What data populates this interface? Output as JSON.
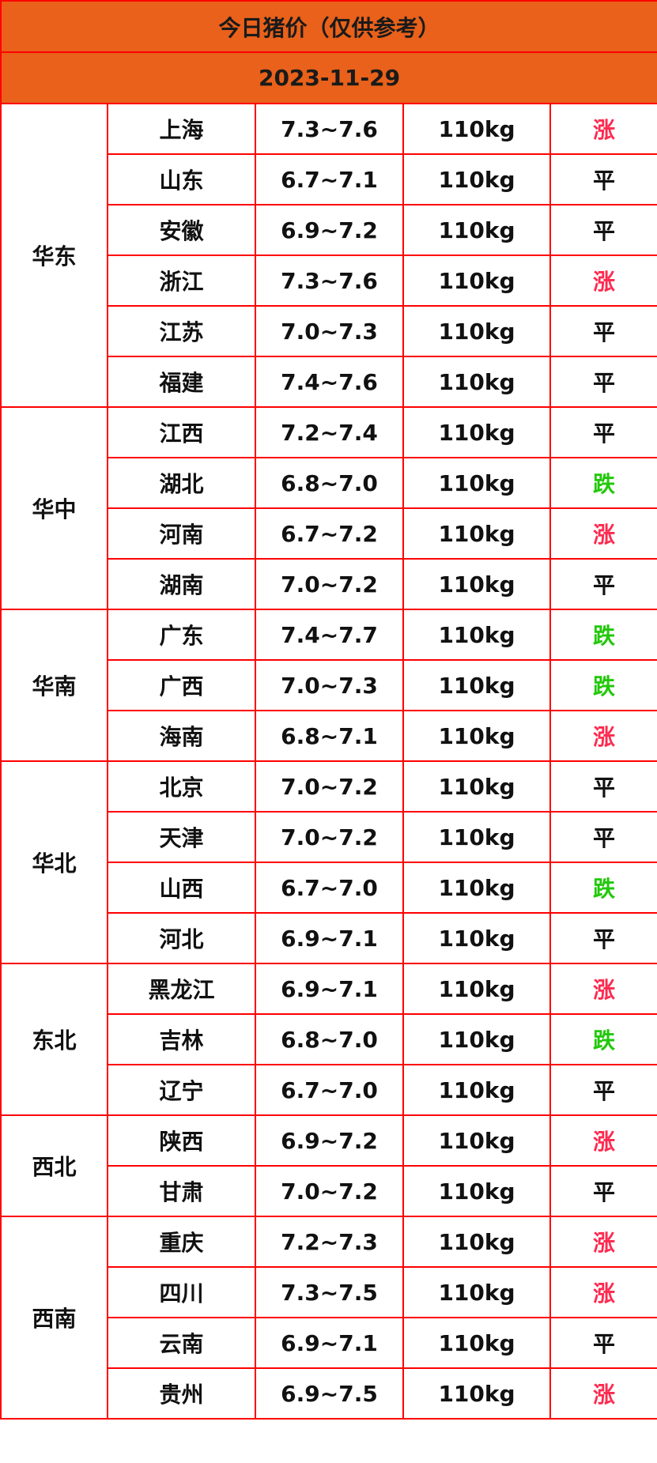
{
  "title": "今日猪价（仅供参考）",
  "date": "2023-11-29",
  "colors": {
    "header_bg": "#e9611a",
    "border": "#ff0000",
    "up": "#ff2a4f",
    "down": "#22c80a",
    "flat": "#111111"
  },
  "regions": [
    {
      "name": "华东",
      "rows": [
        {
          "province": "上海",
          "price": "7.3~7.6",
          "weight": "110kg",
          "trend": "涨"
        },
        {
          "province": "山东",
          "price": "6.7~7.1",
          "weight": "110kg",
          "trend": "平"
        },
        {
          "province": "安徽",
          "price": "6.9~7.2",
          "weight": "110kg",
          "trend": "平"
        },
        {
          "province": "浙江",
          "price": "7.3~7.6",
          "weight": "110kg",
          "trend": "涨"
        },
        {
          "province": "江苏",
          "price": "7.0~7.3",
          "weight": "110kg",
          "trend": "平"
        },
        {
          "province": "福建",
          "price": "7.4~7.6",
          "weight": "110kg",
          "trend": "平"
        }
      ]
    },
    {
      "name": "华中",
      "rows": [
        {
          "province": "江西",
          "price": "7.2~7.4",
          "weight": "110kg",
          "trend": "平"
        },
        {
          "province": "湖北",
          "price": "6.8~7.0",
          "weight": "110kg",
          "trend": "跌"
        },
        {
          "province": "河南",
          "price": "6.7~7.2",
          "weight": "110kg",
          "trend": "涨"
        },
        {
          "province": "湖南",
          "price": "7.0~7.2",
          "weight": "110kg",
          "trend": "平"
        }
      ]
    },
    {
      "name": "华南",
      "rows": [
        {
          "province": "广东",
          "price": "7.4~7.7",
          "weight": "110kg",
          "trend": "跌"
        },
        {
          "province": "广西",
          "price": "7.0~7.3",
          "weight": "110kg",
          "trend": "跌"
        },
        {
          "province": "海南",
          "price": "6.8~7.1",
          "weight": "110kg",
          "trend": "涨"
        }
      ]
    },
    {
      "name": "华北",
      "rows": [
        {
          "province": "北京",
          "price": "7.0~7.2",
          "weight": "110kg",
          "trend": "平"
        },
        {
          "province": "天津",
          "price": "7.0~7.2",
          "weight": "110kg",
          "trend": "平"
        },
        {
          "province": "山西",
          "price": "6.7~7.0",
          "weight": "110kg",
          "trend": "跌"
        },
        {
          "province": "河北",
          "price": "6.9~7.1",
          "weight": "110kg",
          "trend": "平"
        }
      ]
    },
    {
      "name": "东北",
      "rows": [
        {
          "province": "黑龙江",
          "price": "6.9~7.1",
          "weight": "110kg",
          "trend": "涨"
        },
        {
          "province": "吉林",
          "price": "6.8~7.0",
          "weight": "110kg",
          "trend": "跌"
        },
        {
          "province": "辽宁",
          "price": "6.7~7.0",
          "weight": "110kg",
          "trend": "平"
        }
      ]
    },
    {
      "name": "西北",
      "rows": [
        {
          "province": "陕西",
          "price": "6.9~7.2",
          "weight": "110kg",
          "trend": "涨"
        },
        {
          "province": "甘肃",
          "price": "7.0~7.2",
          "weight": "110kg",
          "trend": "平"
        }
      ]
    },
    {
      "name": "西南",
      "rows": [
        {
          "province": "重庆",
          "price": "7.2~7.3",
          "weight": "110kg",
          "trend": "涨"
        },
        {
          "province": "四川",
          "price": "7.3~7.5",
          "weight": "110kg",
          "trend": "涨"
        },
        {
          "province": "云南",
          "price": "6.9~7.1",
          "weight": "110kg",
          "trend": "平"
        },
        {
          "province": "贵州",
          "price": "6.9~7.5",
          "weight": "110kg",
          "trend": "涨"
        }
      ]
    }
  ]
}
